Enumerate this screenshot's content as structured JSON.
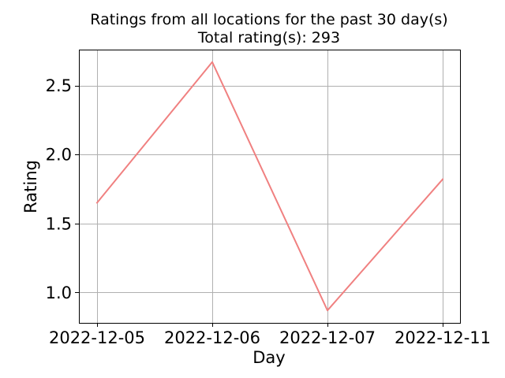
{
  "chart_data": {
    "type": "line",
    "title": "Ratings from all locations for the past 30 day(s)",
    "subtitle": "Total rating(s): 293",
    "xlabel": "Day",
    "ylabel": "Rating",
    "categories": [
      "2022-12-05",
      "2022-12-06",
      "2022-12-07",
      "2022-12-11"
    ],
    "series": [
      {
        "values": [
          1.65,
          2.67,
          0.87,
          1.82
        ],
        "color": "#f08080"
      }
    ],
    "ylim": [
      0.78,
      2.76
    ],
    "yticks": [
      1.0,
      1.5,
      2.0,
      2.5
    ],
    "ytick_labels": [
      "1.0",
      "1.5",
      "2.0",
      "2.5"
    ],
    "grid": true,
    "legend": "none"
  }
}
